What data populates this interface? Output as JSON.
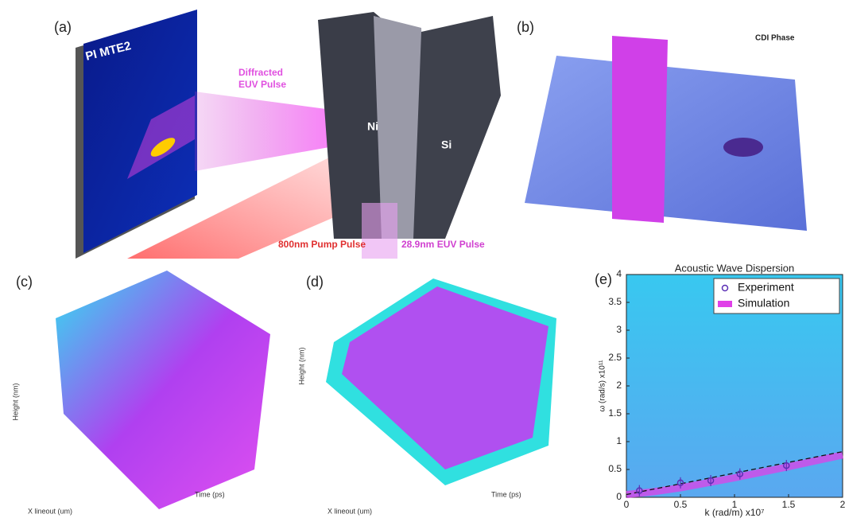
{
  "panels": {
    "a": {
      "label": "(a)",
      "detector": "PI MTE2",
      "diffracted": [
        "Diffracted",
        "EUV Pulse"
      ],
      "ni": "Ni",
      "si": "Si",
      "pump": "800nm Pump Pulse",
      "euv": "28.9nm EUV Pulse"
    },
    "b": {
      "label": "(b)",
      "title": "CDI Phase"
    },
    "c": {
      "label": "(c)",
      "height_label": "Height (nm)",
      "x_label": "X lineout (um)",
      "time_label": "Time (ps)"
    },
    "d": {
      "label": "(d)",
      "height_label": "Height (nm)",
      "x_label": "X lineout (um)",
      "time_label": "Time (ps)"
    }
  },
  "chart_data": {
    "type": "scatter",
    "panel_label": "(e)",
    "title": "Acoustic Wave Dispersion",
    "x_label": "k (rad/m) x10⁷",
    "y_label": "ω (rad/s) x10¹¹",
    "xlim": [
      0,
      2
    ],
    "ylim": [
      0,
      4
    ],
    "xticks": [
      0,
      0.5,
      1,
      1.5,
      2
    ],
    "yticks": [
      0,
      0.5,
      1,
      1.5,
      2,
      2.5,
      3,
      3.5,
      4
    ],
    "series": [
      {
        "name": "Experiment",
        "color": "#5b2fb5",
        "x": [
          0.12,
          0.5,
          0.78,
          1.05,
          1.48
        ],
        "values": [
          0.12,
          0.26,
          0.3,
          0.42,
          0.57
        ],
        "errors": [
          0.1,
          0.1,
          0.1,
          0.1,
          0.1
        ]
      },
      {
        "name": "Simulation",
        "color": "#e040e8",
        "x": [
          0,
          0.25,
          0.5,
          1,
          1.5,
          2
        ],
        "values": [
          0.05,
          0.1,
          0.17,
          0.35,
          0.55,
          0.76
        ]
      }
    ],
    "trend_line": {
      "x": [
        0,
        2
      ],
      "values": [
        0.05,
        0.82
      ]
    },
    "legend": "upper right"
  }
}
